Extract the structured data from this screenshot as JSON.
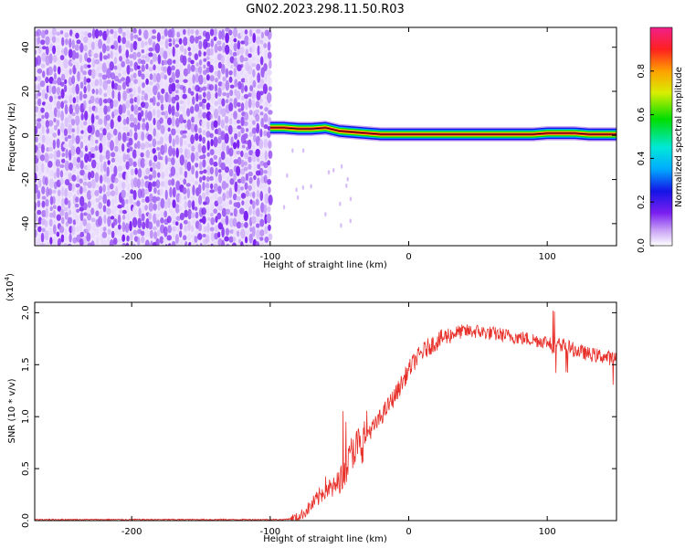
{
  "title": "GN02.2023.298.11.50.R03",
  "chart_data": [
    {
      "type": "heatmap",
      "xlabel": "Height of straight line (km)",
      "ylabel": "Frequency (Hz)",
      "xlim": [
        -270,
        150
      ],
      "ylim": [
        -50,
        49
      ],
      "xticks": [
        -200,
        -100,
        0,
        100
      ],
      "yticks": [
        -40,
        -20,
        0,
        20,
        40
      ],
      "noise_region_x": [
        -270,
        -100
      ],
      "signal_band": {
        "x": [
          -100,
          -90,
          -80,
          -70,
          -60,
          -50,
          -40,
          -30,
          -20,
          -10,
          0,
          10,
          20,
          30,
          40,
          50,
          60,
          70,
          80,
          90,
          100,
          110,
          120,
          130,
          140,
          150
        ],
        "center_freq": [
          3.5,
          3.5,
          3.0,
          3.0,
          3.5,
          2.0,
          1.5,
          1.0,
          0.5,
          0.5,
          0.5,
          0.5,
          0.5,
          0.5,
          0.5,
          0.5,
          0.5,
          0.5,
          0.5,
          0.5,
          1.0,
          1.0,
          1.0,
          0.5,
          0.5,
          0.5
        ]
      },
      "colorbar": {
        "label": "Normalized spectral amplitude",
        "range": [
          0,
          1
        ],
        "ticks": [
          "0.0",
          "0.2",
          "0.4",
          "0.6",
          "0.8"
        ]
      }
    },
    {
      "type": "line",
      "xlabel": "Height of straight line (km)",
      "ylabel": "SNR (10 * v/v)",
      "yunit": "(x10",
      "yunit_exp": "4",
      "yunit_close": ")",
      "xlim": [
        -270,
        150
      ],
      "ylim": [
        0,
        2.1
      ],
      "xticks": [
        -200,
        -100,
        0,
        100
      ],
      "yticks": [
        "0.0",
        "0.5",
        "1.0",
        "1.5",
        "2.0"
      ],
      "color": "#e8302a",
      "series": [
        {
          "x": [
            -270,
            -240,
            -200,
            -160,
            -120,
            -100,
            -90,
            -80,
            -75,
            -70,
            -65,
            -60,
            -55,
            -50,
            -45,
            -40,
            -35,
            -30,
            -25,
            -20,
            -15,
            -10,
            -5,
            0,
            5,
            10,
            15,
            20,
            25,
            30,
            35,
            40,
            50,
            60,
            70,
            80,
            90,
            100,
            105,
            110,
            120,
            130,
            140,
            150
          ],
          "y": [
            0.01,
            0.01,
            0.01,
            0.01,
            0.01,
            0.01,
            0.01,
            0.03,
            0.08,
            0.15,
            0.22,
            0.32,
            0.3,
            0.38,
            0.5,
            0.7,
            0.72,
            0.85,
            0.9,
            1.0,
            1.1,
            1.2,
            1.32,
            1.45,
            1.55,
            1.62,
            1.68,
            1.72,
            1.76,
            1.79,
            1.81,
            1.82,
            1.82,
            1.8,
            1.78,
            1.76,
            1.74,
            1.72,
            1.66,
            1.7,
            1.64,
            1.6,
            1.58,
            1.55
          ]
        }
      ]
    }
  ]
}
